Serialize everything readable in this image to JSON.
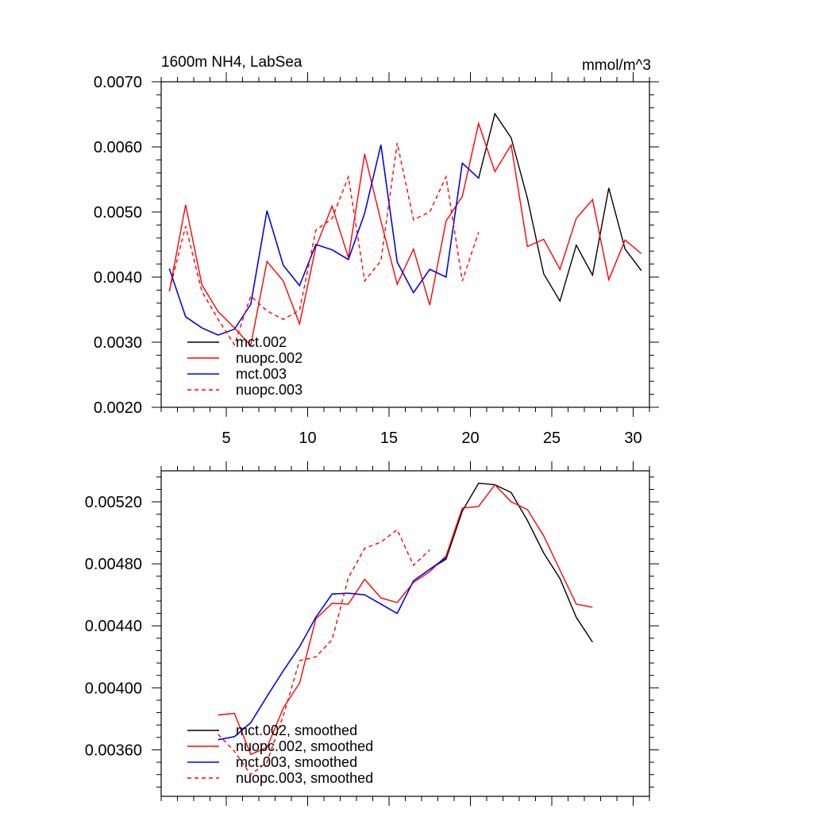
{
  "chart_data": [
    {
      "type": "line",
      "title_left": "1600m NH4, LabSea",
      "title_right": "mmol/m^3",
      "xlim": [
        1,
        31
      ],
      "ylim": [
        0.002,
        0.007
      ],
      "xticks": [
        5,
        10,
        15,
        20,
        25,
        30
      ],
      "xtick_labels": [
        "5",
        "10",
        "15",
        "20",
        "25",
        "30"
      ],
      "yticks": [
        0.002,
        0.003,
        0.004,
        0.005,
        0.006,
        0.007
      ],
      "ytick_labels": [
        "0.0020",
        "0.0030",
        "0.0040",
        "0.0050",
        "0.0060",
        "0.0070"
      ],
      "legend_position": "bottom-left",
      "series": [
        {
          "name": "mct.002",
          "color": "#000000",
          "dash": "solid",
          "x": [
            1.5,
            2.5,
            3.5,
            4.5,
            5.5,
            6.5,
            7.5,
            8.5,
            9.5,
            10.5,
            11.5,
            12.5,
            13.5,
            14.5,
            15.5,
            16.5,
            17.5,
            18.5,
            19.5,
            20.5,
            21.5,
            22.5,
            23.5,
            24.5,
            25.5,
            26.5,
            27.5,
            28.5,
            29.5,
            30.5
          ],
          "y": [
            0.00413,
            0.00339,
            0.00322,
            0.00311,
            0.0032,
            0.00358,
            0.00502,
            0.00418,
            0.00387,
            0.0045,
            0.00442,
            0.00427,
            0.00498,
            0.00603,
            0.00423,
            0.00376,
            0.00412,
            0.004,
            0.00575,
            0.00552,
            0.00651,
            0.00614,
            0.00521,
            0.00405,
            0.00363,
            0.00449,
            0.00403,
            0.00537,
            0.00443,
            0.0041
          ]
        },
        {
          "name": "nuopc.002",
          "color": "#ff0000",
          "dash": "solid",
          "x": [
            1.5,
            2.5,
            3.5,
            4.5,
            5.5,
            6.5,
            7.5,
            8.5,
            9.5,
            10.5,
            11.5,
            12.5,
            13.5,
            14.5,
            15.5,
            16.5,
            17.5,
            18.5,
            19.5,
            20.5,
            21.5,
            22.5,
            23.5,
            24.5,
            25.5,
            26.5,
            27.5,
            28.5,
            29.5,
            30.5
          ],
          "y": [
            0.00378,
            0.00511,
            0.00388,
            0.00347,
            0.00322,
            0.00295,
            0.00424,
            0.00394,
            0.00328,
            0.00446,
            0.00509,
            0.0043,
            0.00589,
            0.00486,
            0.00389,
            0.00443,
            0.00357,
            0.00486,
            0.00524,
            0.00636,
            0.00562,
            0.00603,
            0.00447,
            0.00458,
            0.00412,
            0.0049,
            0.00519,
            0.00396,
            0.00457,
            0.00436
          ]
        },
        {
          "name": "mct.003",
          "color": "#0000ff",
          "dash": "solid",
          "x": [
            1.5,
            2.5,
            3.5,
            4.5,
            5.5,
            6.5,
            7.5,
            8.5,
            9.5,
            10.5,
            11.5,
            12.5,
            13.5,
            14.5,
            15.5,
            16.5,
            17.5,
            18.5,
            19.5,
            20.5
          ],
          "y": [
            0.00413,
            0.00339,
            0.00322,
            0.00311,
            0.0032,
            0.00358,
            0.00502,
            0.00418,
            0.00387,
            0.0045,
            0.00442,
            0.00427,
            0.00498,
            0.00603,
            0.00423,
            0.00376,
            0.00412,
            0.004,
            0.00575,
            0.00552
          ]
        },
        {
          "name": "nuopc.003",
          "color": "#ff0000",
          "dash": "dashed",
          "x": [
            1.5,
            2.5,
            3.5,
            4.5,
            5.5,
            6.5,
            7.5,
            8.5,
            9.5,
            10.5,
            11.5,
            12.5,
            13.5,
            14.5,
            15.5,
            16.5,
            17.5,
            18.5,
            19.5,
            20.5
          ],
          "y": [
            0.00379,
            0.00478,
            0.00378,
            0.00335,
            0.00296,
            0.00371,
            0.00348,
            0.00335,
            0.00349,
            0.00472,
            0.0049,
            0.00554,
            0.00394,
            0.00425,
            0.00606,
            0.00488,
            0.005,
            0.00554,
            0.00394,
            0.00469
          ]
        }
      ]
    },
    {
      "type": "line",
      "xlim": [
        1,
        31
      ],
      "ylim": [
        0.0033,
        0.0054
      ],
      "xticks": [
        5,
        10,
        15,
        20,
        25,
        30
      ],
      "yticks": [
        0.0036,
        0.004,
        0.0044,
        0.0048,
        0.0052
      ],
      "ytick_labels": [
        "0.00360",
        "0.00400",
        "0.00440",
        "0.00480",
        "0.00520"
      ],
      "legend_position": "bottom-left",
      "series": [
        {
          "name": "mct.002, smoothed",
          "color": "#000000",
          "dash": "solid",
          "x": [
            4.5,
            5.5,
            6.5,
            7.5,
            8.5,
            9.5,
            10.5,
            11.5,
            12.5,
            13.5,
            14.5,
            15.5,
            16.5,
            17.5,
            18.5,
            19.5,
            20.5,
            21.5,
            22.5,
            23.5,
            24.5,
            25.5,
            26.5,
            27.5
          ],
          "y": [
            0.003665,
            0.003685,
            0.003775,
            0.003945,
            0.00411,
            0.004265,
            0.004455,
            0.004605,
            0.00461,
            0.0046,
            0.00454,
            0.00448,
            0.00469,
            0.004765,
            0.00483,
            0.00514,
            0.00532,
            0.00531,
            0.00526,
            0.00508,
            0.00487,
            0.004705,
            0.004455,
            0.004295
          ]
        },
        {
          "name": "nuopc.002, smoothed",
          "color": "#ff0000",
          "dash": "solid",
          "x": [
            4.5,
            5.5,
            6.5,
            7.5,
            8.5,
            9.5,
            10.5,
            11.5,
            12.5,
            13.5,
            14.5,
            15.5,
            16.5,
            17.5,
            18.5,
            19.5,
            20.5,
            21.5,
            22.5,
            23.5,
            24.5,
            25.5,
            26.5,
            27.5
          ],
          "y": [
            0.003825,
            0.003835,
            0.00357,
            0.003615,
            0.00387,
            0.00403,
            0.004445,
            0.004545,
            0.00454,
            0.0047,
            0.00458,
            0.00455,
            0.00468,
            0.00475,
            0.00485,
            0.00516,
            0.00517,
            0.00531,
            0.0052,
            0.00515,
            0.00498,
            0.00476,
            0.00454,
            0.00452
          ]
        },
        {
          "name": "mct.003, smoothed",
          "color": "#0000ff",
          "dash": "solid",
          "x": [
            4.5,
            5.5,
            6.5,
            7.5,
            8.5,
            9.5,
            10.5,
            11.5,
            12.5,
            13.5,
            14.5,
            15.5,
            16.5,
            17.5,
            18.5
          ],
          "y": [
            0.003665,
            0.003685,
            0.003775,
            0.003945,
            0.00411,
            0.004265,
            0.004455,
            0.004605,
            0.00461,
            0.0046,
            0.00454,
            0.00448,
            0.00469,
            0.004765,
            0.00484
          ]
        },
        {
          "name": "nuopc.003, smoothed",
          "color": "#ff0000",
          "dash": "dashed",
          "x": [
            4.5,
            5.5,
            6.5,
            7.5,
            8.5,
            9.5,
            10.5,
            11.5,
            12.5,
            13.5,
            14.5,
            15.5,
            16.5,
            17.5
          ],
          "y": [
            0.0037,
            0.00359,
            0.00344,
            0.00352,
            0.00382,
            0.004175,
            0.0042,
            0.00431,
            0.00471,
            0.0049,
            0.00494,
            0.00502,
            0.00479,
            0.00489
          ]
        }
      ]
    }
  ]
}
